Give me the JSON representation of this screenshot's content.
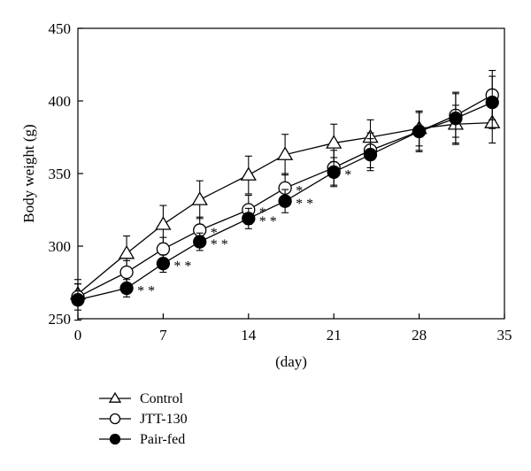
{
  "chart_data": {
    "type": "line",
    "title": "",
    "xlabel": "(day)",
    "ylabel": "Body weight (g)",
    "xlim": [
      0,
      35
    ],
    "ylim": [
      250,
      450
    ],
    "xticks": [
      0,
      7,
      14,
      21,
      28,
      35
    ],
    "yticks": [
      250,
      300,
      350,
      400,
      450
    ],
    "grid": false,
    "legend_position": "bottom-left",
    "series": [
      {
        "name": "Control",
        "marker": "triangle-open",
        "x": [
          0,
          4,
          7,
          10,
          14,
          17,
          21,
          24,
          28,
          31,
          34
        ],
        "y": [
          267,
          295,
          315,
          332,
          349,
          363,
          371,
          375,
          381,
          384,
          385
        ],
        "error": [
          7,
          12,
          13,
          13,
          13,
          14,
          13,
          12,
          12,
          13,
          14
        ]
      },
      {
        "name": "JTT-130",
        "marker": "circle-open",
        "x": [
          0,
          4,
          7,
          10,
          14,
          17,
          21,
          24,
          28,
          31,
          34
        ],
        "y": [
          265,
          282,
          298,
          311,
          325,
          340,
          354,
          366,
          379,
          390,
          404
        ],
        "error": [
          9,
          8,
          8,
          9,
          10,
          10,
          12,
          12,
          14,
          15,
          17
        ]
      },
      {
        "name": "Pair-fed",
        "marker": "circle-filled",
        "x": [
          0,
          4,
          7,
          10,
          14,
          17,
          21,
          24,
          28,
          31,
          34
        ],
        "y": [
          263,
          271,
          288,
          303,
          319,
          331,
          351,
          363,
          379,
          388,
          399
        ],
        "error": [
          14,
          6,
          6,
          6,
          7,
          8,
          10,
          11,
          13,
          18,
          18
        ]
      }
    ],
    "annotations": [
      {
        "text": "* *",
        "x": 4,
        "y": 271
      },
      {
        "text": "* *",
        "x": 7,
        "y": 288
      },
      {
        "text": "*",
        "x": 10,
        "y": 311
      },
      {
        "text": "* *",
        "x": 10,
        "y": 303
      },
      {
        "text": "*",
        "x": 14,
        "y": 325
      },
      {
        "text": "* *",
        "x": 14,
        "y": 319
      },
      {
        "text": "*",
        "x": 17,
        "y": 340
      },
      {
        "text": "* *",
        "x": 17,
        "y": 331
      },
      {
        "text": "*",
        "x": 21,
        "y": 351
      }
    ]
  }
}
